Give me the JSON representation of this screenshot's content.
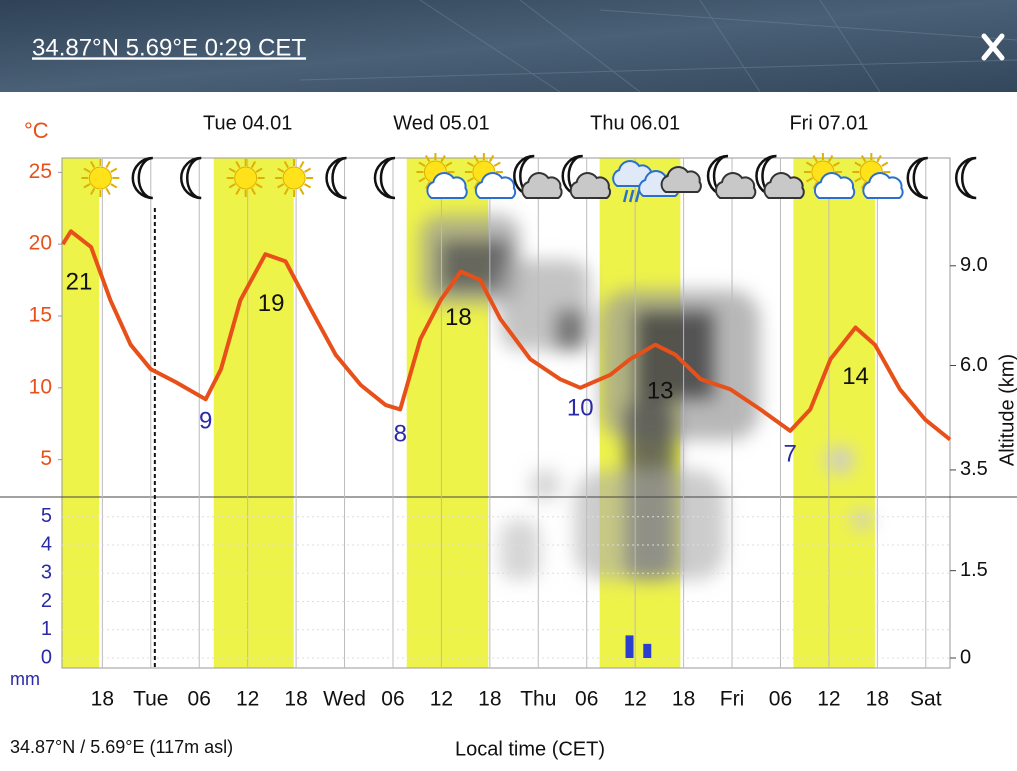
{
  "header": {
    "title": "34.87°N 5.69°E 0:29 CET"
  },
  "chart_data": {
    "type": "line",
    "y_label": "°C",
    "y2_label": "Altitude (km)",
    "x_label": "Local time (CET)",
    "precip_unit": "mm",
    "footer": "34.87°N / 5.69°E (117m asl)",
    "days": [
      "Tue 04.01",
      "Wed 05.01",
      "Thu 06.01",
      "Fri 07.01"
    ],
    "day_x": [
      36,
      60,
      84,
      108
    ],
    "xlim": [
      13,
      123
    ],
    "xticks": [
      {
        "value": 18,
        "label": "18"
      },
      {
        "value": 24,
        "label": "Tue"
      },
      {
        "value": 30,
        "label": "06"
      },
      {
        "value": 36,
        "label": "12"
      },
      {
        "value": 42,
        "label": "18"
      },
      {
        "value": 48,
        "label": "Wed"
      },
      {
        "value": 54,
        "label": "06"
      },
      {
        "value": 60,
        "label": "12"
      },
      {
        "value": 66,
        "label": "18"
      },
      {
        "value": 72,
        "label": "Thu"
      },
      {
        "value": 78,
        "label": "06"
      },
      {
        "value": 84,
        "label": "12"
      },
      {
        "value": 90,
        "label": "18"
      },
      {
        "value": 96,
        "label": "Fri"
      },
      {
        "value": 102,
        "label": "06"
      },
      {
        "value": 108,
        "label": "12"
      },
      {
        "value": 114,
        "label": "18"
      },
      {
        "value": 120,
        "label": "Sat"
      }
    ],
    "ylim": [
      2.4,
      26
    ],
    "yticks": [
      5,
      10,
      15,
      20,
      25
    ],
    "y2lim": [
      0,
      13.4
    ],
    "y2ticks": [
      0,
      1.5,
      3.5,
      {
        "value": 6,
        "label": "6.0"
      },
      {
        "value": 9,
        "label": "9.0"
      }
    ],
    "precip_lim": [
      0,
      17.7
    ],
    "precip_ticks": [
      0,
      1,
      2,
      3,
      4,
      5
    ],
    "now": 24.5,
    "daylight": [
      [
        7.8,
        17.6
      ],
      [
        31.8,
        41.7
      ],
      [
        55.7,
        65.8
      ],
      [
        79.6,
        89.6
      ],
      [
        103.6,
        113.7
      ]
    ],
    "series": [
      {
        "name": "Temperature",
        "color": "#e8501a",
        "x": [
          13.1,
          14.1,
          16.6,
          19.0,
          21.5,
          24.0,
          27.1,
          30.8,
          32.7,
          35.1,
          38.2,
          40.7,
          43.8,
          46.9,
          50.0,
          53.1,
          54.9,
          57.4,
          59.9,
          62.4,
          64.8,
          67.3,
          71.0,
          74.7,
          77.2,
          80.9,
          83.4,
          86.5,
          89.0,
          92.1,
          95.8,
          99.5,
          103.2,
          105.7,
          108.2,
          111.3,
          113.7,
          116.8,
          119.9,
          123.0
        ],
        "values": [
          20.0,
          20.9,
          19.8,
          16.1,
          13.0,
          11.3,
          10.4,
          9.2,
          11.3,
          16.1,
          19.3,
          18.8,
          15.5,
          12.3,
          10.2,
          8.8,
          8.5,
          13.4,
          16.1,
          18.1,
          17.5,
          14.8,
          12.0,
          10.6,
          10.0,
          10.9,
          12.0,
          13.0,
          12.3,
          10.6,
          9.9,
          8.5,
          7.0,
          8.5,
          12.0,
          14.2,
          13.0,
          9.9,
          7.8,
          6.4
        ]
      },
      {
        "name": "Precipitation",
        "color": "#2a3fd0",
        "x": [
          83.3,
          85.5
        ],
        "values": [
          0.8,
          0.5
        ]
      }
    ],
    "annotations": [
      {
        "text": "21",
        "x": 15.1,
        "y": 17.3,
        "color": "#111111"
      },
      {
        "text": "9",
        "x": 30.8,
        "y": 7.6,
        "color": "#2a2aa8"
      },
      {
        "text": "19",
        "x": 38.9,
        "y": 15.8,
        "color": "#111111"
      },
      {
        "text": "8",
        "x": 54.9,
        "y": 6.7,
        "color": "#2a2aa8"
      },
      {
        "text": "18",
        "x": 62.1,
        "y": 14.8,
        "color": "#111111"
      },
      {
        "text": "10",
        "x": 77.2,
        "y": 8.5,
        "color": "#2a2aa8"
      },
      {
        "text": "13",
        "x": 87.1,
        "y": 9.7,
        "color": "#111111"
      },
      {
        "text": "7",
        "x": 103.2,
        "y": 5.3,
        "color": "#2a2aa8"
      },
      {
        "text": "14",
        "x": 111.3,
        "y": 10.7,
        "color": "#111111"
      }
    ],
    "sky_x": [
      18,
      24,
      30,
      36,
      42,
      48,
      54,
      60,
      66,
      72,
      78,
      84,
      90,
      96,
      102,
      108,
      114,
      120,
      126
    ],
    "sky": [
      "sun",
      "moon",
      "moon",
      "sun",
      "sun",
      "moon",
      "moon",
      "suncloud",
      "suncloud",
      "mooncloud",
      "mooncloud",
      "rain",
      "cloud",
      "mooncloud",
      "mooncloud",
      "suncloud",
      "suncloud",
      "moon",
      "moon"
    ]
  }
}
